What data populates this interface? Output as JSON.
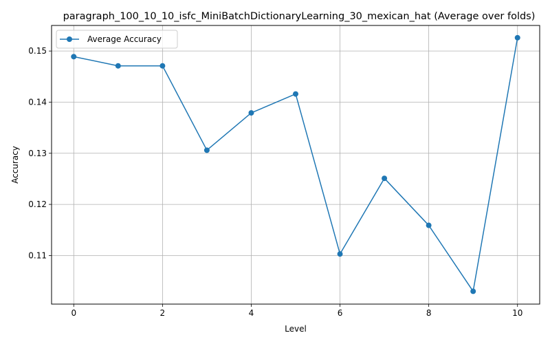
{
  "chart_data": {
    "type": "line",
    "title": "paragraph_100_10_10_isfc_MiniBatchDictionaryLearning_30_mexican_hat (Average over folds)",
    "xlabel": "Level",
    "ylabel": "Accuracy",
    "xlim": [
      -0.5,
      10.5
    ],
    "ylim": [
      0.1005,
      0.155
    ],
    "x_ticks": [
      0,
      2,
      4,
      6,
      8,
      10
    ],
    "y_ticks": [
      0.11,
      0.12,
      0.13,
      0.14,
      0.15
    ],
    "y_tick_labels": [
      "0.11",
      "0.12",
      "0.13",
      "0.14",
      "0.15"
    ],
    "grid": true,
    "legend_position": "upper left",
    "series": [
      {
        "name": "Average Accuracy",
        "color": "#1f77b4",
        "marker": "circle",
        "x": [
          0,
          1,
          2,
          3,
          4,
          5,
          6,
          7,
          8,
          9,
          10
        ],
        "values": [
          0.1489,
          0.1471,
          0.1471,
          0.1306,
          0.1379,
          0.1416,
          0.1103,
          0.1251,
          0.1159,
          0.103,
          0.1526
        ]
      }
    ]
  }
}
